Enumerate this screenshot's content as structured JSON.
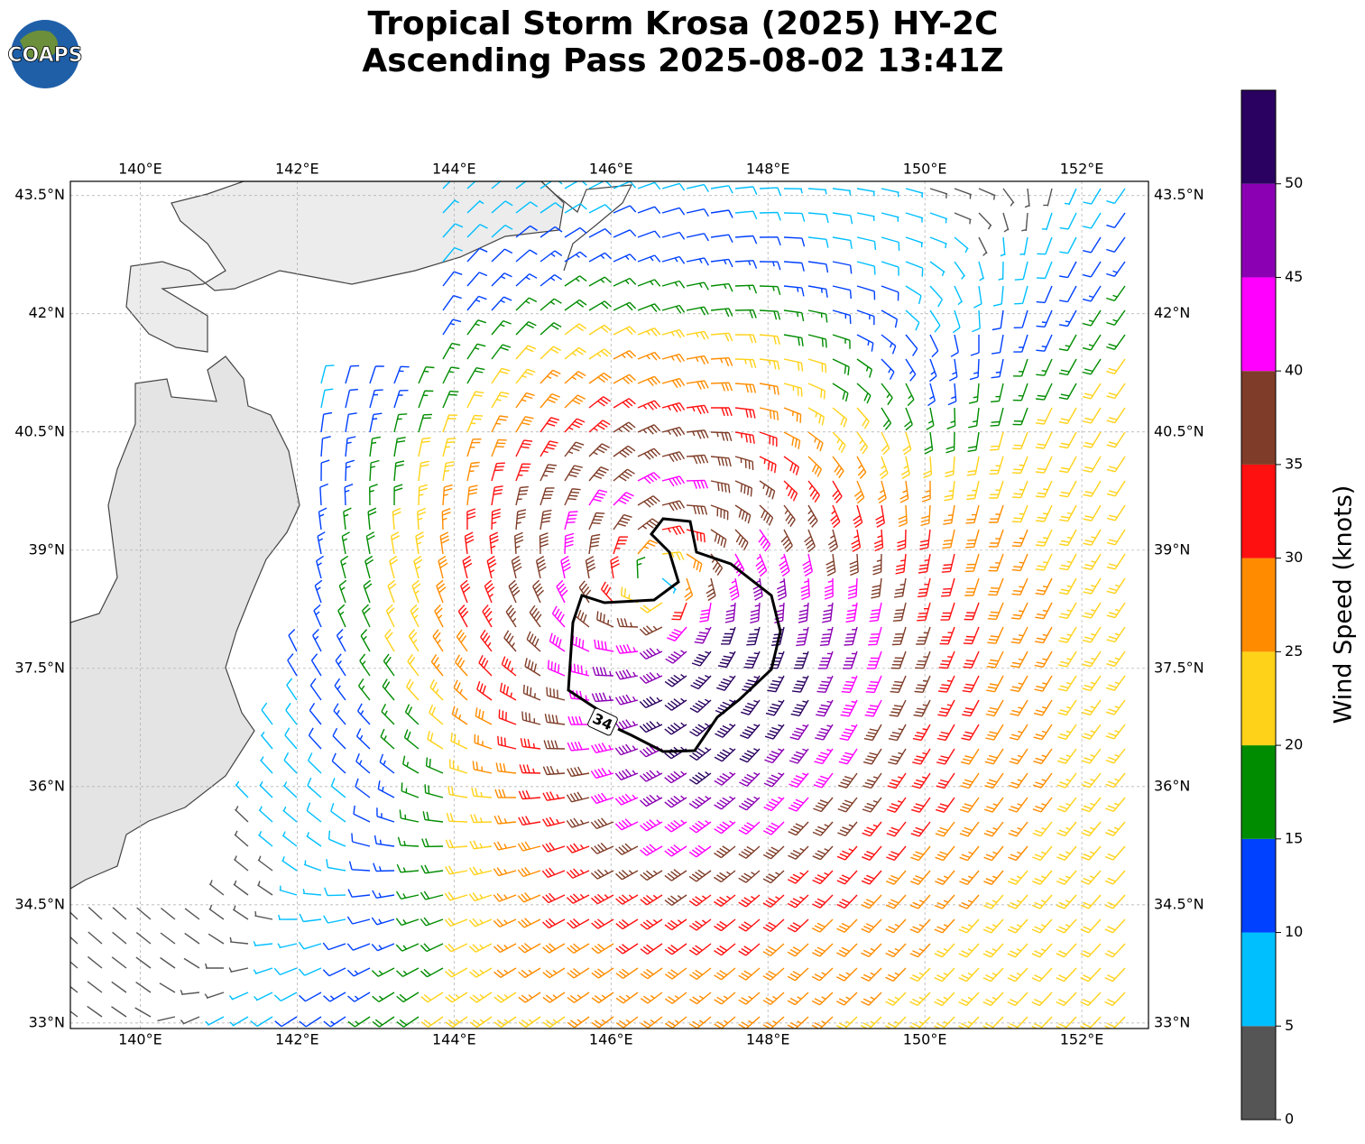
{
  "chart_data": {
    "type": "barbs",
    "logo": "COAPS",
    "title": [
      "Tropical Storm Krosa (2025) HY-2C",
      "Ascending Pass 2025-08-02 13:41Z"
    ],
    "xlim": [
      139.11,
      152.85
    ],
    "ylim": [
      32.93,
      43.68
    ],
    "xticks": [
      {
        "value": 140,
        "label": "140°E"
      },
      {
        "value": 142,
        "label": "142°E"
      },
      {
        "value": 144,
        "label": "144°E"
      },
      {
        "value": 146,
        "label": "146°E"
      },
      {
        "value": 148,
        "label": "148°E"
      },
      {
        "value": 150,
        "label": "150°E"
      },
      {
        "value": 152,
        "label": "152°E"
      }
    ],
    "yticks": [
      {
        "value": 33,
        "label": "33°N"
      },
      {
        "value": 34.5,
        "label": "34.5°N"
      },
      {
        "value": 36,
        "label": "36°N"
      },
      {
        "value": 37.5,
        "label": "37.5°N"
      },
      {
        "value": 39,
        "label": "39°N"
      },
      {
        "value": 40.5,
        "label": "40.5°N"
      },
      {
        "value": 42,
        "label": "42°N"
      },
      {
        "value": 43.5,
        "label": "43.5°N"
      }
    ],
    "grid": true,
    "contour": {
      "value": 34
    },
    "colorbar": {
      "label": "Wind Speed (knots)",
      "bounds": [
        0,
        5,
        10,
        15,
        20,
        25,
        30,
        35,
        40,
        45,
        50,
        55
      ],
      "ticks": [
        0,
        5,
        10,
        15,
        20,
        25,
        30,
        35,
        40,
        45,
        50
      ],
      "colors": [
        "#555555",
        "#00bfff",
        "#0040ff",
        "#008c00",
        "#ffd21a",
        "#ff8c00",
        "#ff1010",
        "#7f3c28",
        "#ff00ff",
        "#8c00b4",
        "#2a0060"
      ]
    }
  }
}
